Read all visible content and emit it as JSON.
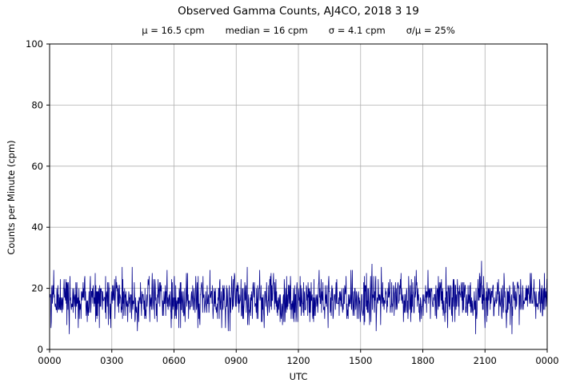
{
  "chart": {
    "title": "Observed Gamma Counts, AJ4CO, 2018 3 19",
    "stats": {
      "mu": "μ = 16.5 cpm",
      "median": "median = 16 cpm",
      "sigma": "σ = 4.1 cpm",
      "ratio": "σ/μ = 25%"
    },
    "xlabel": "UTC",
    "ylabel": "Counts per Minute (cpm)"
  },
  "chart_data": {
    "type": "line",
    "title": "Observed Gamma Counts, AJ4CO, 2018 3 19",
    "subtitle": "μ = 16.5 cpm     median = 16 cpm     σ = 4.1 cpm     σ/μ = 25%",
    "xlabel": "UTC",
    "ylabel": "Counts per Minute (cpm)",
    "x_tick_labels": [
      "0000",
      "0300",
      "0600",
      "0900",
      "1200",
      "1500",
      "1800",
      "2100",
      "0000"
    ],
    "x_tick_minutes": [
      0,
      180,
      360,
      540,
      720,
      900,
      1080,
      1260,
      1440
    ],
    "ylim": [
      0,
      100
    ],
    "y_ticks": [
      0,
      20,
      40,
      60,
      80,
      100
    ],
    "grid": true,
    "legend": "none",
    "line_color": "#00008B",
    "grid_color": "#b0b0b0",
    "axis_color": "#000000",
    "series": [
      {
        "name": "observed gamma counts",
        "units": "cpm",
        "n_points": 1441,
        "mean_cpm": 16.5,
        "median_cpm": 16,
        "sigma_cpm": 4.1,
        "approx_min_cpm": 4,
        "approx_max_cpm": 31,
        "noise_model": "gaussian-integer-counts",
        "seed": 20180319
      }
    ]
  }
}
